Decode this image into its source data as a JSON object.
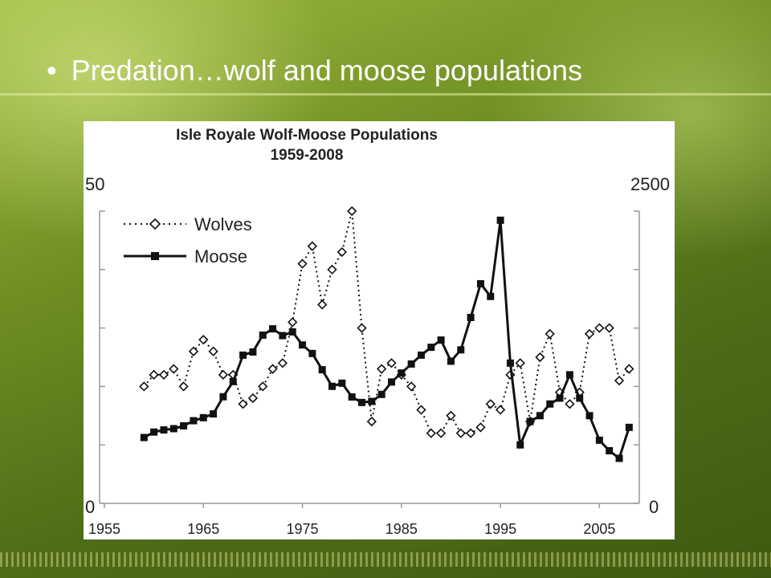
{
  "slide": {
    "bullet": "•",
    "title": "Predation…wolf and moose populations"
  },
  "chart_data": {
    "type": "line",
    "title": "Isle Royale Wolf-Moose Populations",
    "subtitle": "1959-2008",
    "xlabel": "",
    "ylabel_left": "",
    "ylabel_right": "",
    "xlim": [
      1955,
      2010
    ],
    "ylim_left": [
      0,
      50
    ],
    "ylim_right": [
      0,
      2500
    ],
    "x_ticks": [
      "1955",
      "1965",
      "1975",
      "1985",
      "1995",
      "2005"
    ],
    "y_left_ticks": [
      "50",
      "0"
    ],
    "y_right_ticks": [
      "2500",
      "0"
    ],
    "grid": false,
    "legend_position": "top-left",
    "series": [
      {
        "name": "Wolves",
        "axis": "left",
        "style": "dotted, open diamond markers",
        "x": [
          1959,
          1960,
          1961,
          1962,
          1963,
          1964,
          1965,
          1966,
          1967,
          1968,
          1969,
          1970,
          1971,
          1972,
          1973,
          1974,
          1975,
          1976,
          1977,
          1978,
          1979,
          1980,
          1981,
          1982,
          1983,
          1984,
          1985,
          1986,
          1987,
          1988,
          1989,
          1990,
          1991,
          1992,
          1993,
          1994,
          1995,
          1996,
          1997,
          1998,
          1999,
          2000,
          2001,
          2002,
          2003,
          2004,
          2005,
          2006,
          2007,
          2008
        ],
        "values": [
          20,
          22,
          22,
          23,
          20,
          26,
          28,
          26,
          22,
          22,
          17,
          18,
          20,
          23,
          24,
          31,
          41,
          44,
          34,
          40,
          43,
          50,
          30,
          14,
          23,
          24,
          22,
          20,
          16,
          12,
          12,
          15,
          12,
          12,
          13,
          17,
          16,
          22,
          24,
          14,
          25,
          29,
          19,
          17,
          19,
          29,
          30,
          30,
          21,
          23
        ]
      },
      {
        "name": "Moose",
        "axis": "right",
        "style": "solid, filled square markers",
        "x": [
          1959,
          1960,
          1961,
          1962,
          1963,
          1964,
          1965,
          1966,
          1967,
          1968,
          1969,
          1970,
          1971,
          1972,
          1973,
          1974,
          1975,
          1976,
          1977,
          1978,
          1979,
          1980,
          1981,
          1982,
          1983,
          1984,
          1985,
          1986,
          1987,
          1988,
          1989,
          1990,
          1991,
          1992,
          1993,
          1994,
          1995,
          1996,
          1997,
          1998,
          1999,
          2000,
          2001,
          2002,
          2003,
          2004,
          2005,
          2006,
          2007,
          2008
        ],
        "values": [
          563,
          610,
          628,
          639,
          663,
          707,
          733,
          765,
          912,
          1042,
          1268,
          1295,
          1439,
          1493,
          1435,
          1467,
          1355,
          1282,
          1143,
          1001,
          1028,
          910,
          863,
          872,
          932,
          1038,
          1115,
          1192,
          1268,
          1335,
          1397,
          1216,
          1313,
          1590,
          1879,
          1770,
          2422,
          1200,
          500,
          700,
          750,
          850,
          900,
          1100,
          900,
          750,
          540,
          450,
          385,
          650
        ]
      }
    ]
  }
}
